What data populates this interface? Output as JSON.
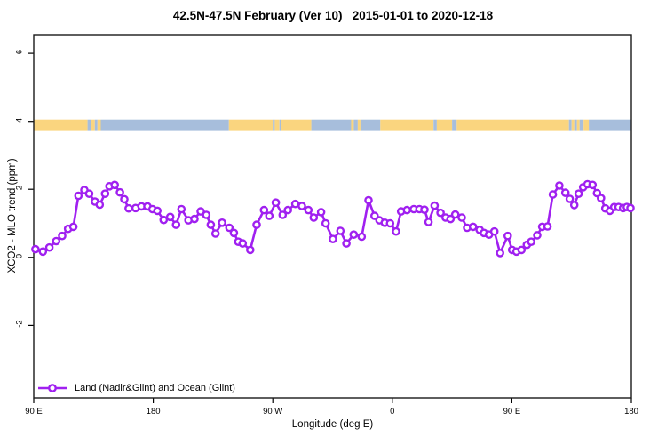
{
  "chart_data": {
    "type": "line",
    "title": "42.5N-47.5N February (Ver 10)   2015-01-01 to 2020-12-18",
    "xlabel": "Longitude (deg E)",
    "ylabel": "XCO2 - MLO trend (ppm)",
    "xlim": [
      90,
      540
    ],
    "ylim": [
      -4.13,
      6.55
    ],
    "grid": false,
    "x_ticks": {
      "positions": [
        90,
        180,
        270,
        360,
        450,
        540
      ],
      "labels": [
        "90 E",
        "180",
        "90 W",
        "0",
        "90 E",
        "180"
      ]
    },
    "y_ticks": {
      "positions": [
        6,
        4,
        2,
        0,
        -2
      ],
      "labels": [
        "6",
        "4",
        "2",
        "0",
        "-2"
      ]
    },
    "legend": {
      "position": "bottom-left",
      "entries": [
        {
          "label": "Land (Nadir&Glint) and Ocean (Glint)",
          "color": "#A020F0",
          "marker": "open-circle"
        }
      ]
    },
    "series": [
      {
        "name": "Land (Nadir&Glint) and Ocean (Glint)",
        "color": "#A020F0",
        "marker": "open-circle",
        "points": [
          [
            91.3,
            0.24
          ],
          [
            96.9,
            0.17
          ],
          [
            101.8,
            0.29
          ],
          [
            106.9,
            0.48
          ],
          [
            111.4,
            0.63
          ],
          [
            115.9,
            0.84
          ],
          [
            119.8,
            0.9
          ],
          [
            123.6,
            1.81
          ],
          [
            128.1,
            1.98
          ],
          [
            131.7,
            1.87
          ],
          [
            136.1,
            1.64
          ],
          [
            139.7,
            1.55
          ],
          [
            143.7,
            1.87
          ],
          [
            147.0,
            2.09
          ],
          [
            151.0,
            2.13
          ],
          [
            154.9,
            1.91
          ],
          [
            158.2,
            1.71
          ],
          [
            161.5,
            1.44
          ],
          [
            166.7,
            1.45
          ],
          [
            171.1,
            1.5
          ],
          [
            175.6,
            1.5
          ],
          [
            179.4,
            1.42
          ],
          [
            183.1,
            1.37
          ],
          [
            187.8,
            1.1
          ],
          [
            192.8,
            1.19
          ],
          [
            197.2,
            0.96
          ],
          [
            201.2,
            1.42
          ],
          [
            206.5,
            1.09
          ],
          [
            211.0,
            1.13
          ],
          [
            215.7,
            1.35
          ],
          [
            219.9,
            1.25
          ],
          [
            223.3,
            0.96
          ],
          [
            226.9,
            0.7
          ],
          [
            231.8,
            1.02
          ],
          [
            237.3,
            0.87
          ],
          [
            240.7,
            0.72
          ],
          [
            244.0,
            0.46
          ],
          [
            247.3,
            0.41
          ],
          [
            253.0,
            0.22
          ],
          [
            257.8,
            0.96
          ],
          [
            263.4,
            1.39
          ],
          [
            267.4,
            1.22
          ],
          [
            272.3,
            1.61
          ],
          [
            277.4,
            1.25
          ],
          [
            281.4,
            1.39
          ],
          [
            287.0,
            1.57
          ],
          [
            291.9,
            1.51
          ],
          [
            296.8,
            1.39
          ],
          [
            300.8,
            1.17
          ],
          [
            306.4,
            1.33
          ],
          [
            309.8,
            1.0
          ],
          [
            315.3,
            0.54
          ],
          [
            320.9,
            0.78
          ],
          [
            325.4,
            0.41
          ],
          [
            330.9,
            0.67
          ],
          [
            336.9,
            0.61
          ],
          [
            342.1,
            1.68
          ],
          [
            346.6,
            1.22
          ],
          [
            350.3,
            1.09
          ],
          [
            354.3,
            1.02
          ],
          [
            358.3,
            1.0
          ],
          [
            362.8,
            0.76
          ],
          [
            366.6,
            1.35
          ],
          [
            371.0,
            1.39
          ],
          [
            376.2,
            1.42
          ],
          [
            380.4,
            1.42
          ],
          [
            384.2,
            1.4
          ],
          [
            387.3,
            1.04
          ],
          [
            391.8,
            1.52
          ],
          [
            396.3,
            1.31
          ],
          [
            400.1,
            1.17
          ],
          [
            403.8,
            1.13
          ],
          [
            407.4,
            1.26
          ],
          [
            412.3,
            1.17
          ],
          [
            416.3,
            0.87
          ],
          [
            420.8,
            0.9
          ],
          [
            425.7,
            0.81
          ],
          [
            429.0,
            0.72
          ],
          [
            432.8,
            0.67
          ],
          [
            436.8,
            0.76
          ],
          [
            441.2,
            0.13
          ],
          [
            446.9,
            0.63
          ],
          [
            450.2,
            0.22
          ],
          [
            453.5,
            0.17
          ],
          [
            457.3,
            0.22
          ],
          [
            461.3,
            0.37
          ],
          [
            464.6,
            0.46
          ],
          [
            469.1,
            0.65
          ],
          [
            472.9,
            0.9
          ],
          [
            476.9,
            0.91
          ],
          [
            480.9,
            1.85
          ],
          [
            485.8,
            2.11
          ],
          [
            490.3,
            1.9
          ],
          [
            493.6,
            1.72
          ],
          [
            497.0,
            1.54
          ],
          [
            500.3,
            1.87
          ],
          [
            503.7,
            2.06
          ],
          [
            507.0,
            2.15
          ],
          [
            510.8,
            2.13
          ],
          [
            514.1,
            1.89
          ],
          [
            517.1,
            1.74
          ],
          [
            520.4,
            1.44
          ],
          [
            523.8,
            1.37
          ],
          [
            527.1,
            1.48
          ],
          [
            530.4,
            1.48
          ],
          [
            533.8,
            1.45
          ],
          [
            536.6,
            1.48
          ],
          [
            539.3,
            1.45
          ]
        ]
      }
    ],
    "map_band": {
      "description": "land-water longitude strip",
      "y_top_value": 4.05,
      "y_bottom_value": 3.74,
      "land_color": "#FAD57F",
      "water_color": "#A7BEDC",
      "segments": [
        {
          "type": "land",
          "from": 90,
          "to": 130.5
        },
        {
          "type": "water",
          "from": 130.5,
          "to": 133
        },
        {
          "type": "land",
          "from": 133,
          "to": 136
        },
        {
          "type": "water",
          "from": 136,
          "to": 138
        },
        {
          "type": "land",
          "from": 138,
          "to": 140.5
        },
        {
          "type": "water",
          "from": 140.5,
          "to": 237
        },
        {
          "type": "land",
          "from": 237,
          "to": 270
        },
        {
          "type": "water",
          "from": 270,
          "to": 271.5
        },
        {
          "type": "land",
          "from": 271.5,
          "to": 275
        },
        {
          "type": "water",
          "from": 275,
          "to": 276.5
        },
        {
          "type": "land",
          "from": 276.5,
          "to": 299
        },
        {
          "type": "water",
          "from": 299,
          "to": 329
        },
        {
          "type": "land",
          "from": 329,
          "to": 331
        },
        {
          "type": "water",
          "from": 331,
          "to": 334
        },
        {
          "type": "land",
          "from": 334,
          "to": 336
        },
        {
          "type": "water",
          "from": 336,
          "to": 351
        },
        {
          "type": "land",
          "from": 351,
          "to": 391
        },
        {
          "type": "water",
          "from": 391,
          "to": 393.5
        },
        {
          "type": "land",
          "from": 393.5,
          "to": 405
        },
        {
          "type": "water",
          "from": 405,
          "to": 408.5
        },
        {
          "type": "land",
          "from": 408.5,
          "to": 493
        },
        {
          "type": "water",
          "from": 493,
          "to": 495
        },
        {
          "type": "land",
          "from": 495,
          "to": 497
        },
        {
          "type": "water",
          "from": 497,
          "to": 499
        },
        {
          "type": "land",
          "from": 499,
          "to": 501
        },
        {
          "type": "water",
          "from": 501,
          "to": 504
        },
        {
          "type": "land",
          "from": 504,
          "to": 508
        },
        {
          "type": "water",
          "from": 508,
          "to": 540
        }
      ]
    }
  }
}
